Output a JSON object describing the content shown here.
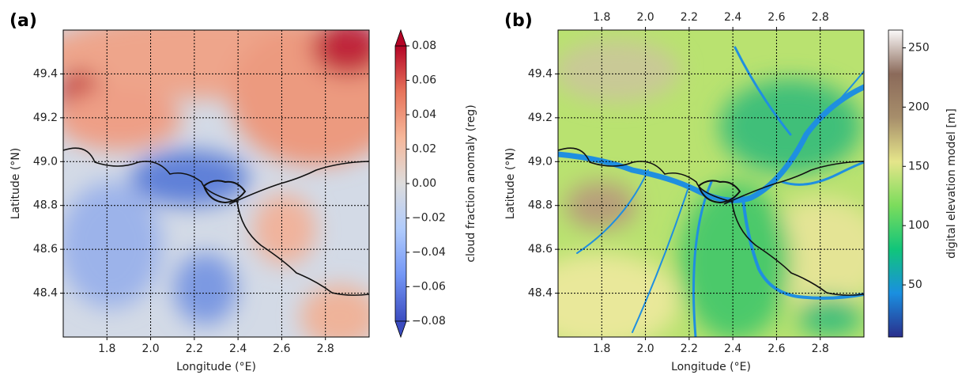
{
  "chart_data": [
    {
      "type": "map",
      "panel_label": "(a)",
      "xlabel": "Longitude (°E)",
      "ylabel": "Latitude (°N)",
      "xlim": [
        1.6,
        3.0
      ],
      "ylim": [
        48.2,
        49.6
      ],
      "xticks": [
        1.8,
        {
          "value": 2.0,
          "label": "2.0"
        },
        2.2,
        2.4,
        2.6,
        2.8
      ],
      "yticks": [
        48.4,
        48.6,
        48.8,
        {
          "value": 49.0,
          "label": "49.0"
        },
        49.2,
        49.4
      ],
      "grid": true,
      "top_ticks": false,
      "colorbar": {
        "label": "cloud fraction anomaly (reg)",
        "lim": [
          -0.08,
          0.08
        ],
        "extend": "both",
        "ticks": [
          {
            "value": -0.08,
            "label": "−0.08"
          },
          {
            "value": -0.06,
            "label": "−0.06"
          },
          {
            "value": -0.04,
            "label": "−0.04"
          },
          {
            "value": -0.02,
            "label": "−0.02"
          },
          {
            "value": 0,
            "label": "0.00"
          },
          0.02,
          0.04,
          0.06,
          0.08
        ],
        "colors": [
          "#3b4cc0",
          "#7396f5",
          "#b0cbfc",
          "#dddcdc",
          "#f6b79a",
          "#e7745b",
          "#b40426"
        ]
      }
    },
    {
      "type": "map",
      "panel_label": "(b)",
      "xlabel": "Longitude (°E)",
      "ylabel": "Latitude (°N)",
      "xlim": [
        1.6,
        3.0
      ],
      "ylim": [
        48.2,
        49.6
      ],
      "xticks": [
        1.8,
        {
          "value": 2.0,
          "label": "2.0"
        },
        2.2,
        2.4,
        2.6,
        2.8
      ],
      "yticks": [
        48.4,
        48.6,
        48.8,
        {
          "value": 49.0,
          "label": "49.0"
        },
        49.2,
        49.4
      ],
      "grid": true,
      "top_ticks": true,
      "colorbar": {
        "label": "digital elevation model [m]",
        "lim": [
          6,
          265
        ],
        "extend": "neither",
        "ticks": [
          50,
          100,
          150,
          200,
          250
        ],
        "colors": [
          "#2a2f8c",
          "#1a8fe0",
          "#11c57a",
          "#7bdc5c",
          "#e5e58a",
          "#a78e6b",
          "#8b6a5a",
          "#fbfafa"
        ]
      }
    }
  ]
}
